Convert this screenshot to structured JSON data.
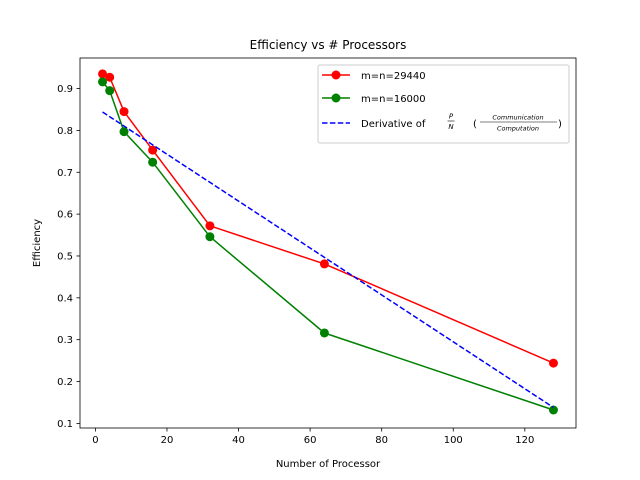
{
  "chart_data": {
    "type": "line",
    "title": "Efficiency vs # Processors",
    "xlabel": "Number of Processor",
    "ylabel": "Efficiency",
    "xlim": [
      -4.3,
      134.3
    ],
    "ylim": [
      0.089,
      0.973
    ],
    "xticks": [
      0,
      20,
      40,
      60,
      80,
      100,
      120
    ],
    "yticks": [
      0.1,
      0.2,
      0.3,
      0.4,
      0.5,
      0.6,
      0.7,
      0.8,
      0.9
    ],
    "xtick_labels": [
      "0",
      "20",
      "40",
      "60",
      "80",
      "100",
      "120"
    ],
    "ytick_labels": [
      "0.1",
      "0.2",
      "0.3",
      "0.4",
      "0.5",
      "0.6",
      "0.7",
      "0.8",
      "0.9"
    ],
    "grid": false,
    "legend_position": "top-right",
    "series": [
      {
        "name": "m=n=29440",
        "color": "#ff0000",
        "style": "solid",
        "marker": "circle",
        "x": [
          2,
          4,
          8,
          16,
          32,
          64,
          128
        ],
        "y": [
          0.935,
          0.927,
          0.845,
          0.753,
          0.572,
          0.481,
          0.244
        ]
      },
      {
        "name": "m=n=16000",
        "color": "#008000",
        "style": "solid",
        "marker": "circle",
        "x": [
          2,
          4,
          8,
          16,
          32,
          64,
          128
        ],
        "y": [
          0.916,
          0.895,
          0.797,
          0.724,
          0.546,
          0.316,
          0.132
        ]
      },
      {
        "name": "Derivative of",
        "color": "#0000ff",
        "style": "dashed",
        "marker": "none",
        "x": [
          2,
          128
        ],
        "y": [
          0.844,
          0.138
        ]
      }
    ],
    "legend_math": {
      "frac1_num": "P",
      "frac1_den": "N",
      "frac2_num": "Communication",
      "frac2_den": "Computation",
      "open_paren": "(",
      "close_paren": ")"
    }
  }
}
